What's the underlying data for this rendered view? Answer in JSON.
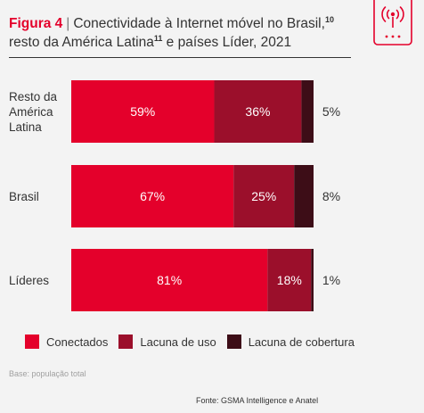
{
  "title": {
    "figure_label": "Figura 4",
    "separator": "|",
    "part1": "Conectividade à Internet móvel no Brasil,",
    "sup1": "10",
    "part2": " resto da América Latina",
    "sup2": "11",
    "part3": " e países Líder, 2021"
  },
  "colors": {
    "conectados": "#e4002b",
    "lacuna_uso": "#9b0f2b",
    "lacuna_cobertura": "#3d0d17",
    "accent": "#e4002b"
  },
  "icon": "mobile-tower-icon",
  "chart_data": {
    "type": "bar",
    "orientation": "horizontal",
    "stacked": true,
    "categories": [
      "Resto da América Latina",
      "Brasil",
      "Líderes"
    ],
    "category_lines": [
      [
        "Resto da",
        "América",
        "Latina"
      ],
      [
        "Brasil"
      ],
      [
        "Líderes"
      ]
    ],
    "series": [
      {
        "name": "Conectados",
        "values": [
          59,
          67,
          81
        ],
        "labels": [
          "59%",
          "67%",
          "81%"
        ]
      },
      {
        "name": "Lacuna de uso",
        "values": [
          36,
          25,
          18
        ],
        "labels": [
          "36%",
          "25%",
          "18%"
        ]
      },
      {
        "name": "Lacuna de cobertura",
        "values": [
          5,
          8,
          1
        ],
        "labels": [
          "5%",
          "8%",
          "1%"
        ]
      }
    ],
    "xlim": [
      0,
      100
    ],
    "grid": false,
    "legend_position": "bottom"
  },
  "legend": [
    {
      "label": "Conectados",
      "color": "#e4002b"
    },
    {
      "label": "Lacuna de uso",
      "color": "#9b0f2b"
    },
    {
      "label": "Lacuna de cobertura",
      "color": "#3d0d17"
    }
  ],
  "footer": {
    "base_note": "Base: população total",
    "source": "Fonte: GSMA Intelligence e Anatel"
  }
}
